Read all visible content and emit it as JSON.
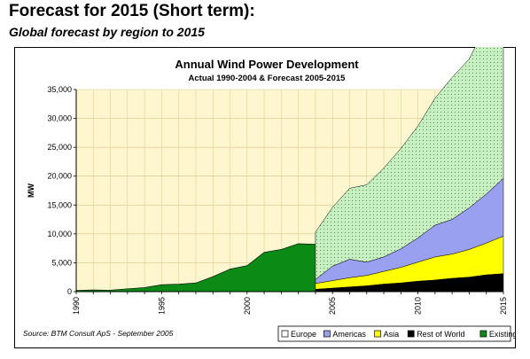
{
  "slide": {
    "title": "Forecast for 2015 (Short term):",
    "subtitle": "Global forecast by region to 2015"
  },
  "colors": {
    "plot_bg": "#fdf6cf",
    "grid": "#d9c78a",
    "existing": "#0b8a16",
    "forecast_fill": "#c9eec4",
    "forecast_dot": "#3a9a3a",
    "americas": "#9aa0f0",
    "asia": "#ffff00",
    "rest_of_world": "#000000",
    "europe": "#ffffff"
  },
  "chart_data": {
    "type": "area",
    "title": "Annual Wind Power Development",
    "subtitle": "Actual 1990-2004 & Forecast 2005-2015",
    "ylabel": "MW",
    "xlabel": "",
    "ylim": [
      0,
      35000
    ],
    "xlim": [
      1990,
      2015
    ],
    "yticks": [
      0,
      5000,
      10000,
      15000,
      20000,
      25000,
      30000,
      35000
    ],
    "yticklabels": [
      "0",
      "5,000",
      "10,000",
      "15,000",
      "20,000",
      "25,000",
      "30,000",
      "35,000"
    ],
    "xticks": [
      "1990",
      "1995",
      "2000",
      "2005",
      "2010",
      "2015"
    ],
    "grid": true,
    "source": "Source: BTM Consult ApS - September 2005",
    "legend": [
      "Europe",
      "Americas",
      "Asia",
      "Rest of World",
      "Existing"
    ],
    "legend_placement": "bottom-right",
    "existing": {
      "name": "Existing",
      "x": [
        1990,
        1991,
        1992,
        1993,
        1994,
        1995,
        1996,
        1997,
        1998,
        1999,
        2000,
        2001,
        2002,
        2003,
        2004
      ],
      "values": [
        200,
        300,
        250,
        500,
        700,
        1200,
        1300,
        1500,
        2600,
        3900,
        4500,
        6800,
        7300,
        8300,
        8200
      ]
    },
    "forecast": {
      "x": [
        2004,
        2005,
        2006,
        2007,
        2008,
        2009,
        2010,
        2011,
        2012,
        2013,
        2014,
        2015
      ],
      "series": [
        {
          "name": "Rest of World",
          "values": [
            400,
            600,
            800,
            1000,
            1300,
            1500,
            1800,
            2000,
            2300,
            2500,
            2900,
            3100
          ]
        },
        {
          "name": "Asia",
          "values": [
            1000,
            1300,
            1600,
            1800,
            2200,
            2700,
            3300,
            4000,
            4200,
            4800,
            5500,
            6500
          ]
        },
        {
          "name": "Americas",
          "values": [
            700,
            2500,
            3200,
            2300,
            2500,
            3200,
            4200,
            5500,
            6000,
            7200,
            8500,
            10000
          ]
        },
        {
          "name": "Europe",
          "values": [
            8200,
            10200,
            12300,
            13400,
            15400,
            17400,
            19400,
            22000,
            24600,
            25800,
            29300,
            32800
          ]
        }
      ]
    }
  }
}
